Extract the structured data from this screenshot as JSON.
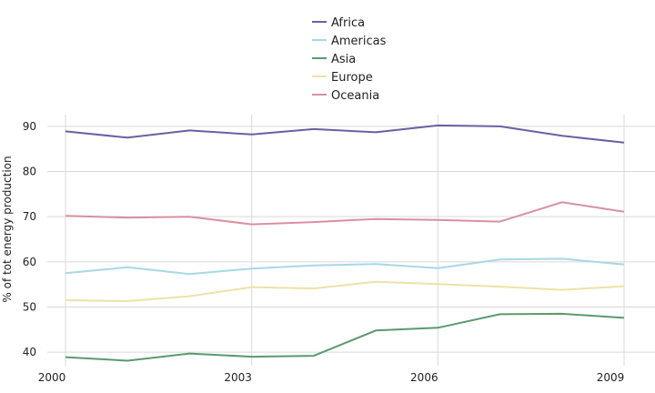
{
  "chart_data": {
    "type": "line",
    "title": "",
    "xlabel": "",
    "ylabel": "% of tot energy production",
    "x": [
      2000,
      2001,
      2002,
      2003,
      2004,
      2005,
      2006,
      2007,
      2008,
      2009
    ],
    "xticks": [
      2000,
      2003,
      2006,
      2009
    ],
    "yticks": [
      40,
      50,
      60,
      70,
      80,
      90
    ],
    "xlim": [
      2000,
      2009
    ],
    "ylim": [
      37,
      92.6
    ],
    "grid": true,
    "legend_position": "top-center",
    "series": [
      {
        "name": "Africa",
        "color": "#6b5fa5",
        "values": [
          88.9,
          87.5,
          89.1,
          88.2,
          89.4,
          88.7,
          90.2,
          90.0,
          87.9,
          86.4
        ]
      },
      {
        "name": "Americas",
        "color": "#a8d8e6",
        "values": [
          57.5,
          58.8,
          57.3,
          58.5,
          59.2,
          59.5,
          58.6,
          60.5,
          60.7,
          59.4
        ]
      },
      {
        "name": "Asia",
        "color": "#5a9a6e",
        "values": [
          38.9,
          38.1,
          39.7,
          39.0,
          39.2,
          44.8,
          45.4,
          48.4,
          48.5,
          47.6
        ]
      },
      {
        "name": "Europe",
        "color": "#ede2a8",
        "values": [
          51.5,
          51.3,
          52.4,
          54.4,
          54.1,
          55.6,
          55.1,
          54.5,
          53.8,
          54.6
        ]
      },
      {
        "name": "Oceania",
        "color": "#d891a0",
        "values": [
          70.2,
          69.8,
          70.0,
          68.3,
          68.8,
          69.5,
          69.3,
          68.9,
          73.2,
          71.1
        ]
      }
    ]
  }
}
